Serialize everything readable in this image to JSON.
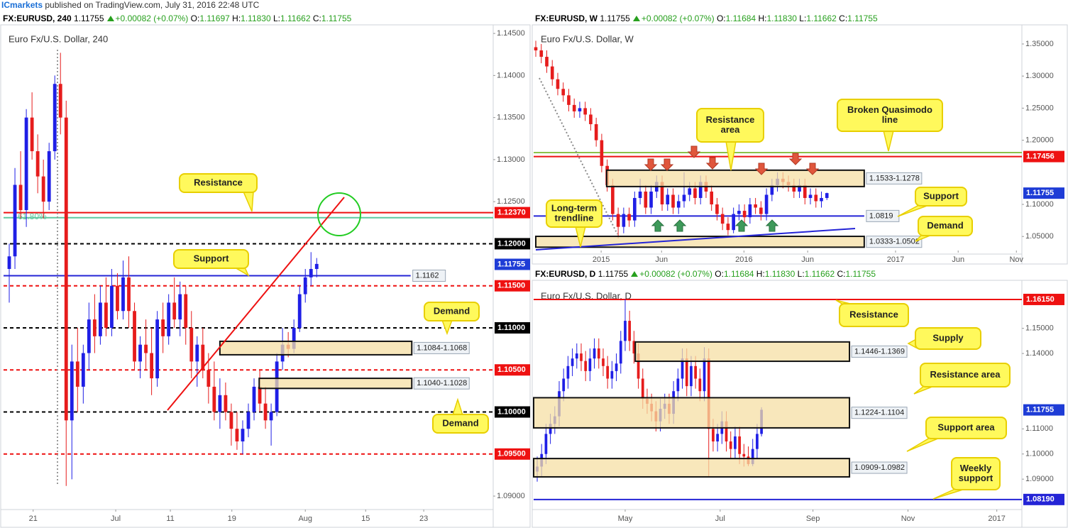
{
  "header": {
    "publisher": "ICmarkets",
    "text": "published on TradingView.com, July 31, 2016 22:48 UTC"
  },
  "chart_data": [
    {
      "type": "candlestick",
      "symbol": "FX:EURUSD, 240",
      "last": "1.11755",
      "change": "+0.00082 (+0.07%)",
      "ohlc": [
        {
          "key": "O:",
          "value": "1.11697"
        },
        {
          "key": "H:",
          "value": "1.11830"
        },
        {
          "key": "L:",
          "value": "1.11662"
        },
        {
          "key": "C:",
          "value": "1.11755"
        }
      ],
      "title": "Euro Fx/U.S. Dollar, 240",
      "up_color": "#1f1fe6",
      "down_color": "#e61c1c",
      "grid": false,
      "xlim": [
        -1,
        85
      ],
      "ylim": [
        1.0884,
        1.1456
      ],
      "xticks": [
        {
          "value": 4.2,
          "label": "21"
        },
        {
          "value": 18.7,
          "label": "Jul"
        },
        {
          "value": 28.3,
          "label": "11"
        },
        {
          "value": 39.1,
          "label": "19"
        },
        {
          "value": 52,
          "label": "Aug"
        },
        {
          "value": 62.6,
          "label": "15"
        },
        {
          "value": 72.8,
          "label": "23"
        }
      ],
      "yticks": [
        {
          "value": 1.145,
          "label": "1.14500"
        },
        {
          "value": 1.14,
          "label": "1.14000"
        },
        {
          "value": 1.135,
          "label": "1.13500"
        },
        {
          "value": 1.13,
          "label": "1.13000"
        },
        {
          "value": 1.125,
          "label": "1.12500"
        },
        {
          "value": 1.09,
          "label": "1.09000"
        }
      ],
      "open": [
        1.117,
        1.1185,
        1.127,
        1.124,
        1.135,
        1.131,
        1.128,
        1.125,
        1.131,
        1.139,
        1.135,
        1.099,
        1.106,
        1.103,
        1.107,
        1.111,
        1.109,
        1.113,
        1.11,
        1.115,
        1.112,
        1.116,
        1.112,
        1.106,
        1.108,
        1.107,
        1.104,
        1.111,
        1.109,
        1.113,
        1.111,
        1.114,
        1.11,
        1.106,
        1.108,
        1.105,
        1.103,
        1.1,
        1.102,
        1.1,
        1.098,
        1.0965,
        1.098,
        1.1,
        1.103,
        1.101,
        1.099,
        1.1,
        1.106,
        1.108,
        1.1075,
        1.11,
        1.114,
        1.116,
        1.117
      ],
      "high": [
        1.12,
        1.129,
        1.131,
        1.136,
        1.138,
        1.133,
        1.13,
        1.132,
        1.14,
        1.1427,
        1.137,
        1.108,
        1.11,
        1.108,
        1.113,
        1.114,
        1.115,
        1.116,
        1.117,
        1.1165,
        1.118,
        1.1185,
        1.113,
        1.109,
        1.111,
        1.11,
        1.112,
        1.113,
        1.114,
        1.116,
        1.1155,
        1.115,
        1.112,
        1.109,
        1.11,
        1.107,
        1.106,
        1.104,
        1.1035,
        1.101,
        1.1,
        1.099,
        1.101,
        1.104,
        1.105,
        1.103,
        1.101,
        1.107,
        1.11,
        1.1095,
        1.111,
        1.115,
        1.117,
        1.119,
        1.1183
      ],
      "low": [
        1.113,
        1.117,
        1.123,
        1.122,
        1.13,
        1.126,
        1.123,
        1.124,
        1.13,
        1.133,
        1.0912,
        1.092,
        1.1,
        1.101,
        1.105,
        1.107,
        1.108,
        1.109,
        1.109,
        1.111,
        1.111,
        1.11,
        1.105,
        1.104,
        1.105,
        1.102,
        1.103,
        1.107,
        1.108,
        1.11,
        1.109,
        1.108,
        1.104,
        1.103,
        1.104,
        1.101,
        1.099,
        1.098,
        1.099,
        1.096,
        1.0955,
        1.095,
        1.097,
        1.099,
        1.1,
        1.098,
        1.096,
        1.0995,
        1.105,
        1.1065,
        1.107,
        1.1095,
        1.113,
        1.115,
        1.116
      ],
      "close": [
        1.1185,
        1.127,
        1.124,
        1.135,
        1.131,
        1.128,
        1.125,
        1.131,
        1.139,
        1.135,
        1.099,
        1.106,
        1.103,
        1.107,
        1.111,
        1.109,
        1.113,
        1.11,
        1.115,
        1.112,
        1.116,
        1.112,
        1.106,
        1.108,
        1.107,
        1.104,
        1.111,
        1.109,
        1.113,
        1.111,
        1.114,
        1.11,
        1.106,
        1.108,
        1.105,
        1.103,
        1.1,
        1.102,
        1.1,
        1.098,
        1.0965,
        1.098,
        1.1,
        1.103,
        1.101,
        1.099,
        1.1,
        1.106,
        1.108,
        1.1075,
        1.11,
        1.114,
        1.116,
        1.117,
        1.1176
      ],
      "levels": [
        {
          "value": 1.1237,
          "axis_label": "1.12370",
          "color": "#ee1111",
          "line": "solid"
        },
        {
          "value": 1.1231,
          "name": "61.80%",
          "color": "#5fc9a0",
          "line": "solid"
        },
        {
          "value": 1.12,
          "axis_label": "1.12000",
          "color": "#000000",
          "line": "dashed"
        },
        {
          "value": 1.1162,
          "inline_label": "1.1162",
          "color": "#2424d6",
          "line": "solid",
          "end": 70.5
        },
        {
          "value": 1.115,
          "axis_label": "1.11500",
          "color": "#ee1111",
          "line": "dashed"
        },
        {
          "value": 1.11,
          "axis_label": "1.11000",
          "color": "#000000",
          "line": "dashed"
        },
        {
          "value": 1.105,
          "axis_label": "1.10500",
          "color": "#ee1111",
          "line": "dashed"
        },
        {
          "value": 1.1,
          "axis_label": "1.10000",
          "color": "#000000",
          "line": "dashed"
        },
        {
          "value": 1.095,
          "axis_label": "1.09500",
          "color": "#ee1111",
          "line": "dashed"
        },
        {
          "value": 1.11755,
          "axis_label": "1.11755",
          "color": "#1e3cd6",
          "line": "none"
        }
      ],
      "zones": [
        {
          "label": "1.1084-1.1068",
          "top": 1.1084,
          "bottom": 1.1068,
          "x": [
            37,
            70.7
          ]
        },
        {
          "label": "1.1040-1.1028",
          "top": 1.104,
          "bottom": 1.1028,
          "x": [
            43.9,
            70.7
          ]
        }
      ],
      "callouts": [
        {
          "lines": [
            "Resistance"
          ]
        },
        {
          "lines": [
            "Support"
          ]
        },
        {
          "lines": [
            "Demand"
          ]
        },
        {
          "lines": [
            "Demand"
          ]
        }
      ]
    },
    {
      "type": "candlestick",
      "symbol": "FX:EURUSD, W",
      "last": "1.11755",
      "change": "+0.00082 (+0.07%)",
      "ohlc": [
        {
          "key": "O:",
          "value": "1.11684"
        },
        {
          "key": "H:",
          "value": "1.11830"
        },
        {
          "key": "L:",
          "value": "1.11662"
        },
        {
          "key": "C:",
          "value": "1.11755"
        }
      ],
      "title": "Euro Fx/U.S. Dollar, W",
      "up_color": "#1f1fe6",
      "down_color": "#e61c1c",
      "grid": false,
      "xlim": [
        -0.39,
        88.5
      ],
      "ylim": [
        1.0237,
        1.3743
      ],
      "xticks": [
        {
          "value": 11.9,
          "label": "2015"
        },
        {
          "value": 22.9,
          "label": "Jun"
        },
        {
          "value": 37.9,
          "label": "2016"
        },
        {
          "value": 49.5,
          "label": "Jun"
        },
        {
          "value": 65.5,
          "label": "2017"
        },
        {
          "value": 76.9,
          "label": "Jun"
        },
        {
          "value": 87.5,
          "label": "Nov"
        }
      ],
      "yticks": [
        {
          "value": 1.35,
          "label": "1.35000"
        },
        {
          "value": 1.3,
          "label": "1.30000"
        },
        {
          "value": 1.25,
          "label": "1.25000"
        },
        {
          "value": 1.2,
          "label": "1.20000"
        },
        {
          "value": 1.1,
          "label": "1.10000"
        },
        {
          "value": 1.05,
          "label": "1.05000"
        }
      ],
      "open": [
        1.345,
        1.34,
        1.33,
        1.315,
        1.295,
        1.28,
        1.27,
        1.255,
        1.245,
        1.25,
        1.24,
        1.225,
        1.2,
        1.16,
        1.13,
        1.085,
        1.065,
        1.085,
        1.075,
        1.11,
        1.12,
        1.095,
        1.12,
        1.135,
        1.1,
        1.115,
        1.095,
        1.105,
        1.115,
        1.125,
        1.11,
        1.135,
        1.12,
        1.1,
        1.085,
        1.07,
        1.06,
        1.085,
        1.09,
        1.08,
        1.1,
        1.095,
        1.085,
        1.115,
        1.13,
        1.14,
        1.135,
        1.13,
        1.12,
        1.13,
        1.11,
        1.115,
        1.105,
        1.11
      ],
      "high": [
        1.355,
        1.35,
        1.34,
        1.325,
        1.305,
        1.29,
        1.28,
        1.265,
        1.26,
        1.26,
        1.25,
        1.235,
        1.21,
        1.17,
        1.14,
        1.095,
        1.095,
        1.095,
        1.12,
        1.14,
        1.13,
        1.13,
        1.145,
        1.145,
        1.125,
        1.125,
        1.115,
        1.15,
        1.135,
        1.135,
        1.145,
        1.145,
        1.13,
        1.11,
        1.095,
        1.08,
        1.095,
        1.1,
        1.1,
        1.11,
        1.11,
        1.105,
        1.125,
        1.14,
        1.15,
        1.15,
        1.145,
        1.14,
        1.14,
        1.14,
        1.125,
        1.125,
        1.12,
        1.1183
      ],
      "low": [
        1.33,
        1.32,
        1.305,
        1.285,
        1.27,
        1.26,
        1.245,
        1.235,
        1.235,
        1.23,
        1.215,
        1.19,
        1.15,
        1.12,
        1.075,
        1.047,
        1.055,
        1.065,
        1.065,
        1.1,
        1.085,
        1.085,
        1.11,
        1.09,
        1.09,
        1.085,
        1.085,
        1.095,
        1.105,
        1.1,
        1.1,
        1.11,
        1.09,
        1.075,
        1.06,
        1.052,
        1.055,
        1.075,
        1.07,
        1.07,
        1.085,
        1.075,
        1.075,
        1.105,
        1.12,
        1.125,
        1.12,
        1.11,
        1.11,
        1.1,
        1.1,
        1.095,
        1.095,
        1.1068
      ],
      "close": [
        1.34,
        1.33,
        1.315,
        1.295,
        1.28,
        1.27,
        1.255,
        1.245,
        1.25,
        1.24,
        1.225,
        1.2,
        1.16,
        1.13,
        1.085,
        1.065,
        1.085,
        1.075,
        1.11,
        1.12,
        1.095,
        1.12,
        1.135,
        1.1,
        1.115,
        1.095,
        1.105,
        1.115,
        1.125,
        1.11,
        1.135,
        1.12,
        1.1,
        1.085,
        1.07,
        1.06,
        1.085,
        1.09,
        1.08,
        1.1,
        1.095,
        1.085,
        1.115,
        1.13,
        1.14,
        1.135,
        1.13,
        1.12,
        1.13,
        1.11,
        1.115,
        1.105,
        1.11,
        1.1176
      ],
      "levels": [
        {
          "value": 1.1808,
          "color": "#8bc34a",
          "line": "solid"
        },
        {
          "value": 1.17456,
          "axis_label": "1.17456",
          "color": "#ee1111",
          "line": "solid"
        },
        {
          "value": 1.0819,
          "inline_label": "1.0819",
          "color": "#2424d6",
          "line": "solid",
          "end": 59.8
        },
        {
          "value": 1.11755,
          "axis_label": "1.11755",
          "color": "#1e3cd6",
          "line": "none"
        }
      ],
      "zones": [
        {
          "label": "1.1533-1.1278",
          "top": 1.1533,
          "bottom": 1.1278,
          "x": [
            12.9,
            59.8
          ]
        },
        {
          "label": "1.0333-1.0502",
          "top": 1.0502,
          "bottom": 1.0333,
          "x": [
            0,
            59.8
          ]
        }
      ],
      "callouts": [
        {
          "lines": [
            "Resistance",
            "area"
          ]
        },
        {
          "lines": [
            "Broken Quasimodo",
            "line"
          ]
        },
        {
          "lines": [
            "Support"
          ]
        },
        {
          "lines": [
            "Long-term",
            "trendline"
          ]
        },
        {
          "lines": [
            "Demand"
          ]
        }
      ]
    },
    {
      "type": "candlestick",
      "symbol": "FX:EURUSD, D",
      "last": "1.11755",
      "change": "+0.00082 (+0.07%)",
      "ohlc": [
        {
          "key": "O:",
          "value": "1.11684"
        },
        {
          "key": "H:",
          "value": "1.11830"
        },
        {
          "key": "L:",
          "value": "1.11662"
        },
        {
          "key": "C:",
          "value": "1.11755"
        }
      ],
      "title": "Euro Fx/U.S. Dollar, D",
      "up_color": "#1f1fe6",
      "down_color": "#e61c1c",
      "grid": false,
      "xlim": [
        -0.81,
        110.2
      ],
      "ylim": [
        1.0779,
        1.1677
      ],
      "xticks": [
        {
          "value": 20,
          "label": "May"
        },
        {
          "value": 41.6,
          "label": "Jul"
        },
        {
          "value": 62.7,
          "label": "Sep"
        },
        {
          "value": 84.3,
          "label": "Nov"
        },
        {
          "value": 104.5,
          "label": "2017"
        }
      ],
      "yticks": [
        {
          "value": 1.15,
          "label": "1.15000"
        },
        {
          "value": 1.14,
          "label": "1.14000"
        },
        {
          "value": 1.11,
          "label": "1.11000"
        },
        {
          "value": 1.1,
          "label": "1.10000"
        },
        {
          "value": 1.09,
          "label": "1.09000"
        }
      ],
      "open": [
        1.093,
        1.095,
        1.1,
        1.108,
        1.112,
        1.115,
        1.125,
        1.13,
        1.135,
        1.138,
        1.14,
        1.137,
        1.133,
        1.138,
        1.142,
        1.138,
        1.135,
        1.13,
        1.133,
        1.136,
        1.145,
        1.153,
        1.145,
        1.14,
        1.13,
        1.122,
        1.12,
        1.117,
        1.113,
        1.118,
        1.12,
        1.116,
        1.125,
        1.13,
        1.138,
        1.127,
        1.135,
        1.13,
        1.125,
        1.138,
        1.11,
        1.105,
        1.108,
        1.113,
        1.105,
        1.102,
        1.107,
        1.1,
        1.099,
        1.096,
        1.102,
        1.108
      ],
      "high": [
        1.099,
        1.104,
        1.112,
        1.116,
        1.119,
        1.129,
        1.134,
        1.139,
        1.142,
        1.144,
        1.144,
        1.141,
        1.142,
        1.146,
        1.146,
        1.142,
        1.139,
        1.137,
        1.14,
        1.149,
        1.1616,
        1.157,
        1.149,
        1.144,
        1.134,
        1.126,
        1.124,
        1.121,
        1.122,
        1.124,
        1.124,
        1.129,
        1.134,
        1.142,
        1.142,
        1.139,
        1.139,
        1.134,
        1.1425,
        1.142,
        1.114,
        1.112,
        1.117,
        1.117,
        1.109,
        1.111,
        1.111,
        1.104,
        1.103,
        1.106,
        1.112,
        1.1186
      ],
      "low": [
        1.089,
        1.091,
        1.096,
        1.104,
        1.108,
        1.111,
        1.121,
        1.126,
        1.131,
        1.134,
        1.133,
        1.129,
        1.129,
        1.134,
        1.134,
        1.131,
        1.126,
        1.126,
        1.129,
        1.132,
        1.141,
        1.141,
        1.136,
        1.126,
        1.118,
        1.116,
        1.113,
        1.109,
        1.109,
        1.114,
        1.112,
        1.112,
        1.121,
        1.126,
        1.123,
        1.123,
        1.126,
        1.121,
        1.121,
        1.0912,
        1.101,
        1.101,
        1.104,
        1.101,
        1.098,
        1.098,
        1.096,
        1.095,
        1.0952,
        1.0952,
        1.098,
        1.107
      ],
      "close": [
        1.095,
        1.1,
        1.108,
        1.112,
        1.115,
        1.125,
        1.13,
        1.135,
        1.138,
        1.14,
        1.137,
        1.133,
        1.138,
        1.142,
        1.138,
        1.135,
        1.13,
        1.133,
        1.136,
        1.145,
        1.153,
        1.145,
        1.14,
        1.13,
        1.122,
        1.12,
        1.117,
        1.113,
        1.118,
        1.12,
        1.116,
        1.125,
        1.13,
        1.138,
        1.127,
        1.135,
        1.13,
        1.125,
        1.138,
        1.11,
        1.105,
        1.108,
        1.113,
        1.105,
        1.102,
        1.107,
        1.1,
        1.099,
        1.096,
        1.102,
        1.108,
        1.1176
      ],
      "levels": [
        {
          "value": 1.1615,
          "axis_label": "1.16150",
          "color": "#ee1111",
          "line": "solid"
        },
        {
          "value": 1.0819,
          "axis_label": "1.08190",
          "color": "#2424d6",
          "line": "solid"
        },
        {
          "value": 1.11755,
          "axis_label": "1.11755",
          "color": "#1e3cd6",
          "line": "none"
        }
      ],
      "zones": [
        {
          "label": "1.1446-1.1369",
          "top": 1.1446,
          "bottom": 1.1369,
          "x": [
            22.3,
            71
          ]
        },
        {
          "label": "1.1224-1.1104",
          "top": 1.1224,
          "bottom": 1.1104,
          "x": [
            -0.81,
            71
          ]
        },
        {
          "label": "1.0909-1.0982",
          "top": 1.0982,
          "bottom": 1.0909,
          "x": [
            -0.81,
            71
          ]
        }
      ],
      "callouts": [
        {
          "lines": [
            "Resistance"
          ]
        },
        {
          "lines": [
            "Supply"
          ]
        },
        {
          "lines": [
            "Resistance area"
          ]
        },
        {
          "lines": [
            "Support area"
          ]
        },
        {
          "lines": [
            "Weekly",
            "support"
          ]
        }
      ]
    }
  ]
}
